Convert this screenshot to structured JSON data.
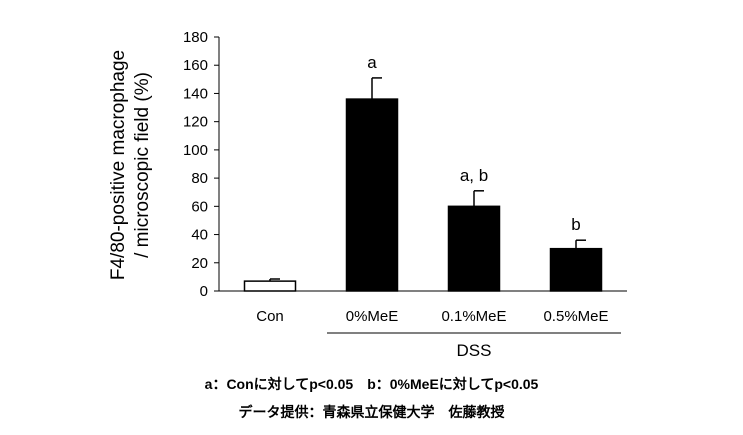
{
  "chart_data": {
    "type": "bar",
    "ylabel_lines": [
      "F4/80-positive macrophage",
      "/ microscopic field (%)"
    ],
    "ylim": [
      0,
      180
    ],
    "yticks": [
      0,
      20,
      40,
      60,
      80,
      100,
      120,
      140,
      160,
      180
    ],
    "categories": [
      "Con",
      "0%MeE",
      "0.1%MeE",
      "0.5%MeE"
    ],
    "values": [
      7,
      136,
      60,
      30
    ],
    "errors": [
      1.5,
      15,
      11,
      6
    ],
    "significance": [
      "",
      "a",
      "a, b",
      "b"
    ],
    "group_label": "DSS",
    "colors": {
      "control": "#ffffff",
      "treated": "#000000",
      "stroke": "#000000"
    }
  },
  "footnote": "a：Conに対してp<0.05　b：0%MeEに対してp<0.05",
  "credit": "データ提供：青森県立保健大学　佐藤教授"
}
